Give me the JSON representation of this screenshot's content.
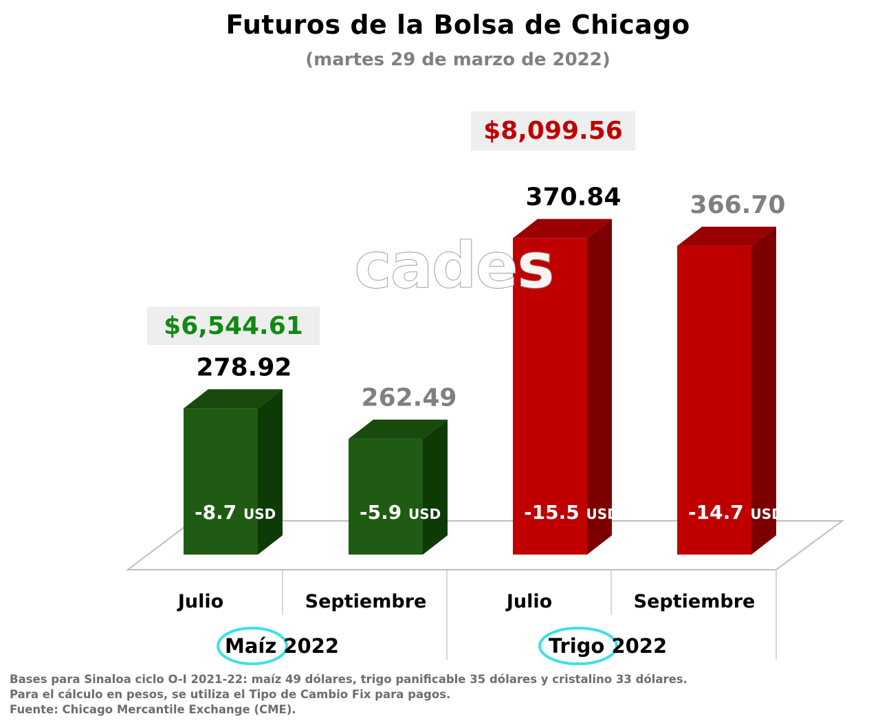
{
  "chart_data": {
    "type": "bar",
    "title": "Futuros de la Bolsa de Chicago",
    "subtitle": "(martes 29 de marzo de 2022)",
    "categories": [
      "Julio",
      "Septiembre",
      "Julio",
      "Septiembre"
    ],
    "groups": [
      {
        "name": "Maíz",
        "year": "2022",
        "indices": [
          0,
          1
        ],
        "pesos_label": "$6,544.61",
        "color": "#1f5b12",
        "pesos_color": "#118a11"
      },
      {
        "name": "Trigo",
        "year": "2022",
        "indices": [
          2,
          3
        ],
        "pesos_label": "$8,099.56",
        "color": "#c00000",
        "pesos_color": "#c00000"
      }
    ],
    "values": [
      278.92,
      262.49,
      370.84,
      366.7
    ],
    "value_labels": [
      "278.92",
      "262.49",
      "370.84",
      "366.70"
    ],
    "value_label_colors": [
      "#000000",
      "#808080",
      "#000000",
      "#808080"
    ],
    "basis_labels": [
      "-8.7",
      "-5.9",
      "-15.5",
      "-14.7"
    ],
    "basis_unit": "USD",
    "colors": {
      "maiz_front": "#1f5b12",
      "maiz_side": "#0e3a06",
      "maiz_top": "#174a0c",
      "trigo_front": "#c00000",
      "trigo_side": "#7d0000",
      "trigo_top": "#9a0000",
      "highlight_circle": "#3de0e8",
      "pesos_box": "#eeeeee"
    },
    "watermark": "cades"
  },
  "footnotes": [
    "Bases para Sinaloa ciclo O-I 2021-22: maíz 49 dólares, trigo panificable 35 dólares y cristalino 33 dólares.",
    "Para el cálculo en pesos, se utiliza el Tipo de Cambio Fix para pagos.",
    "Fuente: Chicago Mercantile Exchange (CME)."
  ]
}
